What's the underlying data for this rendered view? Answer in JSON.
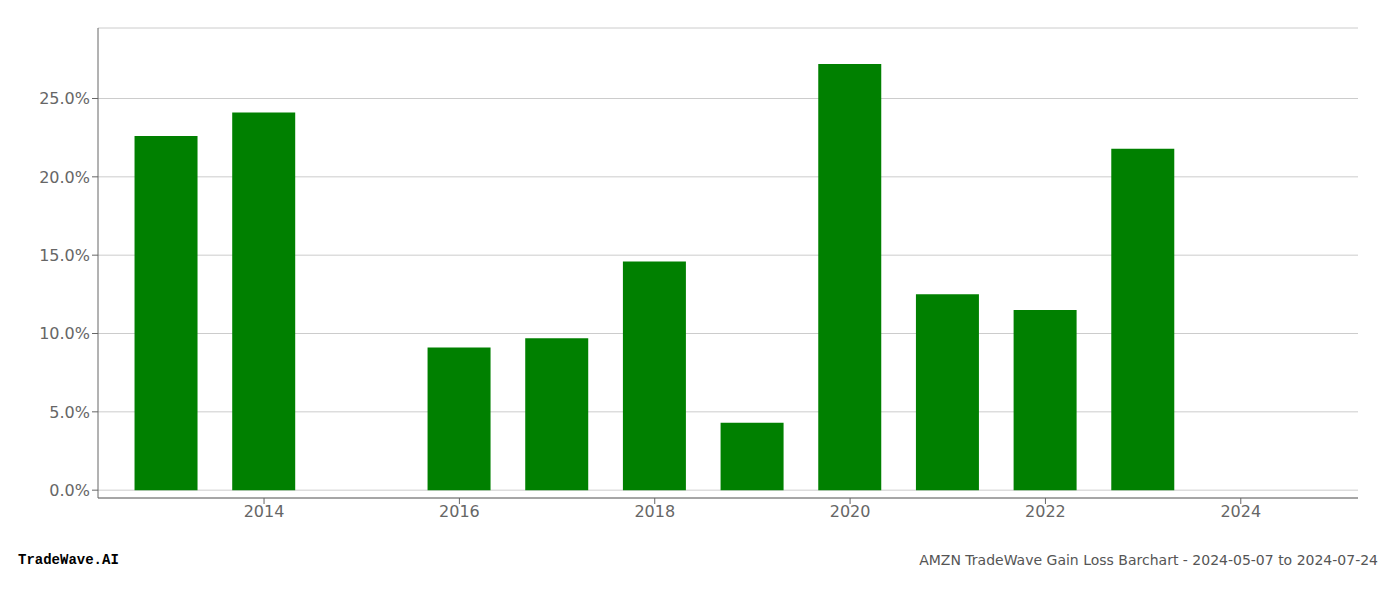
{
  "chart_data": {
    "type": "bar",
    "x": [
      2013,
      2014,
      2016,
      2017,
      2018,
      2019,
      2020,
      2021,
      2022,
      2023
    ],
    "values": [
      0.226,
      0.241,
      0.091,
      0.097,
      0.146,
      0.043,
      0.272,
      0.125,
      0.115,
      0.218
    ],
    "color": "#008000",
    "xlim": [
      2012.3,
      2025.2
    ],
    "xticks": [
      2014,
      2016,
      2018,
      2020,
      2022,
      2024
    ],
    "ylim": [
      -0.005,
      0.295
    ],
    "yticks": [
      {
        "value": 0.0,
        "label": "0.0%"
      },
      {
        "value": 0.05,
        "label": "5.0%"
      },
      {
        "value": 0.1,
        "label": "10.0%"
      },
      {
        "value": 0.15,
        "label": "15.0%"
      },
      {
        "value": 0.2,
        "label": "20.0%"
      },
      {
        "value": 0.25,
        "label": "25.0%"
      }
    ],
    "grid": "y",
    "annotations": [
      "TradeWave.AI",
      "AMZN TradeWave Gain Loss Barchart - 2024-05-07 to 2024-07-24"
    ]
  }
}
